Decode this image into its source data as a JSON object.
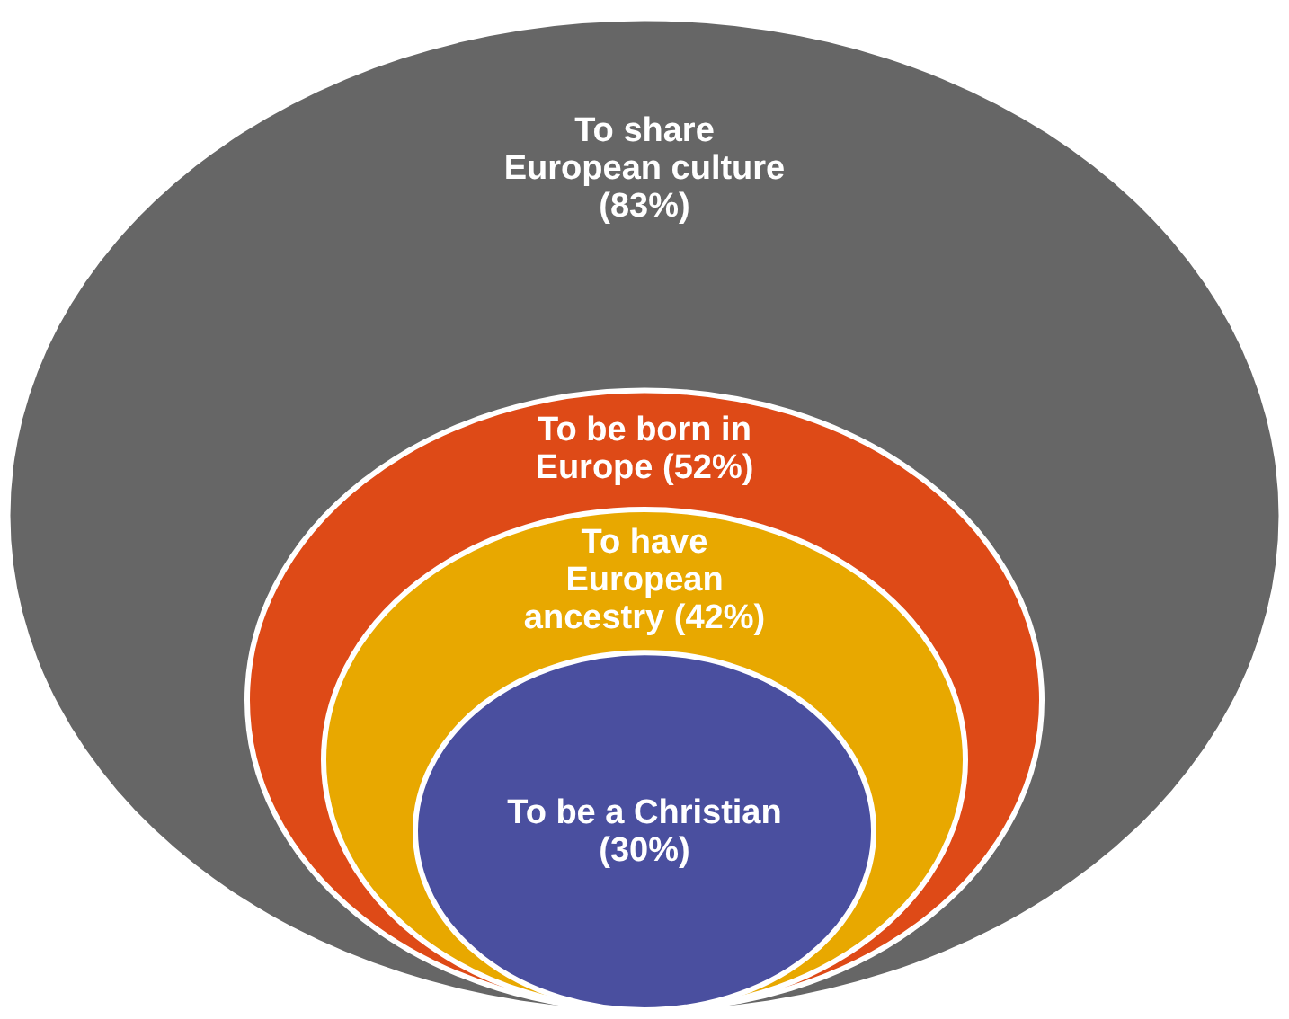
{
  "chart_data": {
    "type": "other",
    "categories": [
      "To share European culture",
      "To be born in Europe",
      "To have European ancestry",
      "To be a Christian"
    ],
    "values": [
      83,
      52,
      42,
      30
    ],
    "value_labels": [
      "(83%)",
      "(52%)",
      "(42%)",
      "(30%)"
    ],
    "colors": [
      "#666666",
      "#de4a17",
      "#e8a800",
      "#4a4f9f"
    ]
  }
}
